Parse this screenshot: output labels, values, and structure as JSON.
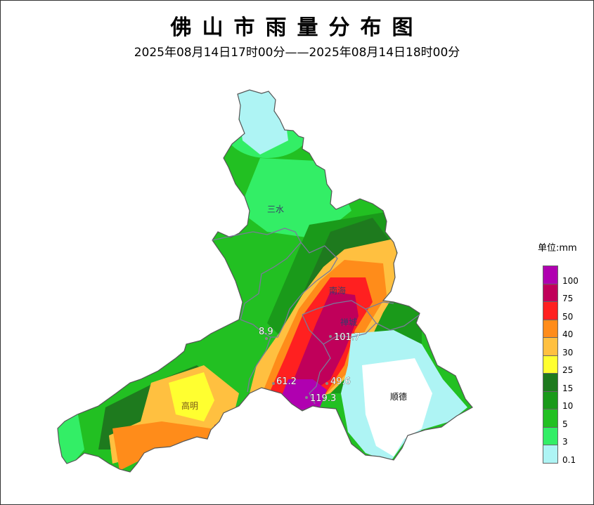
{
  "title": "佛山市雨量分布图",
  "subtitle": "2025年08月14日17时00分——2025年08月14日18时00分",
  "legend": {
    "unit_label": "单位:mm",
    "bins": [
      {
        "label": "100",
        "color": "#b000b0"
      },
      {
        "label": "75",
        "color": "#c0005a"
      },
      {
        "label": "50",
        "color": "#ff2020"
      },
      {
        "label": "40",
        "color": "#ff8c1a"
      },
      {
        "label": "30",
        "color": "#ffc040"
      },
      {
        "label": "25",
        "color": "#ffff30"
      },
      {
        "label": "15",
        "color": "#1e7a1e"
      },
      {
        "label": "10",
        "color": "#1a9a1a"
      },
      {
        "label": "5",
        "color": "#22c022"
      },
      {
        "label": "3",
        "color": "#33ee66"
      },
      {
        "label": "0.1",
        "color": "#aef4f4"
      }
    ]
  },
  "districts": {
    "sanshui": "三水",
    "nanhai": "南海",
    "chancheng": "禅城",
    "gaoming": "高明",
    "shunde": "顺德"
  },
  "stations": [
    {
      "value": "8.9"
    },
    {
      "value": "101.7"
    },
    {
      "value": "61.2"
    },
    {
      "value": "49.6"
    },
    {
      "value": "119.3"
    }
  ]
}
